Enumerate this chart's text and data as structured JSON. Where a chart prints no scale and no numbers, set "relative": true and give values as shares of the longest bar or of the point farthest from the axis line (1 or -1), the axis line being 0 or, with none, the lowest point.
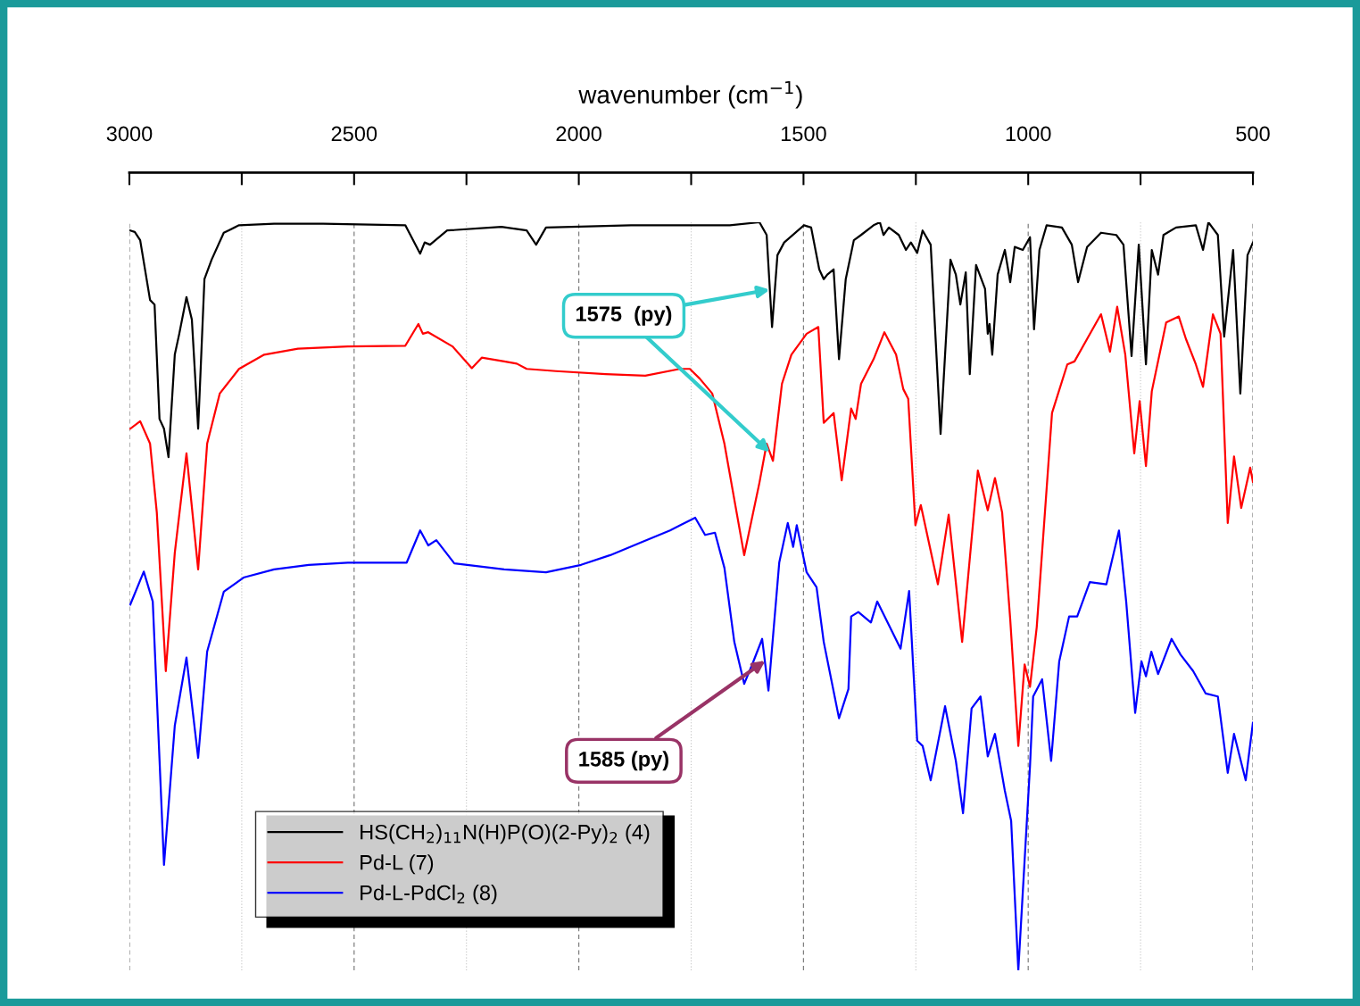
{
  "chart_data": {
    "type": "line",
    "relative": true,
    "xlabel": "wavenumber (cm$^{−1}$)",
    "xlim": [
      3000,
      500
    ],
    "xticks": [
      3000,
      {
        "value": 2750,
        "label": null
      },
      2500,
      {
        "value": 2250,
        "label": null
      },
      2000,
      {
        "value": 1750,
        "label": null
      },
      1500,
      {
        "value": 1250,
        "label": null
      },
      1000,
      {
        "value": 750,
        "label": null
      },
      500
    ],
    "grid": "x",
    "legend": "bottom left",
    "tick_labels": "x",
    "marker": "none",
    "line_style": "solid",
    "annotations": [
      {
        "text": "1575  (py)",
        "x": 1575,
        "y": 0.91
      },
      {
        "text": "1585 (py)",
        "x": 1585,
        "y": 0.414
      }
    ],
    "series": [
      {
        "name": "HS(CH$_{2}$)$_{11}$N(H)P(O)(2-Py)$_{2}$ (4)",
        "color": "#000000",
        "x": [
          2998,
          2988,
          2976,
          2954,
          2944,
          2933,
          2923,
          2913,
          2899,
          2889,
          2873,
          2861,
          2847,
          2833,
          2817,
          2790,
          2756,
          2678,
          2569,
          2386,
          2353,
          2343,
          2331,
          2293,
          2172,
          2116,
          2095,
          2073,
          1884,
          1664,
          1598,
          1582,
          1570,
          1558,
          1543,
          1499,
          1483,
          1465,
          1455,
          1447,
          1433,
          1421,
          1406,
          1388,
          1372,
          1344,
          1330,
          1322,
          1310,
          1288,
          1272,
          1261,
          1247,
          1235,
          1217,
          1195,
          1173,
          1161,
          1151,
          1139,
          1130,
          1116,
          1096,
          1090,
          1086,
          1080,
          1068,
          1052,
          1040,
          1030,
          1012,
          996,
          987,
          975,
          959,
          925,
          903,
          889,
          869,
          838,
          804,
          788,
          770,
          754,
          738,
          725,
          711,
          699,
          671,
          627,
          611,
          599,
          578,
          564,
          544,
          528,
          512,
          500
        ],
        "values": [
          0.989,
          0.987,
          0.976,
          0.896,
          0.89,
          0.737,
          0.724,
          0.686,
          0.823,
          0.851,
          0.9,
          0.87,
          0.724,
          0.924,
          0.95,
          0.986,
          0.996,
          0.998,
          0.998,
          0.996,
          0.958,
          0.973,
          0.97,
          0.989,
          0.994,
          0.989,
          0.97,
          0.993,
          0.996,
          0.996,
          1.0,
          0.983,
          0.86,
          0.956,
          0.973,
          0.996,
          0.993,
          0.937,
          0.924,
          0.93,
          0.937,
          0.817,
          0.924,
          0.976,
          0.983,
          0.996,
          1.0,
          0.983,
          0.993,
          0.983,
          0.963,
          0.973,
          0.959,
          0.989,
          0.97,
          0.717,
          0.95,
          0.93,
          0.89,
          0.933,
          0.797,
          0.943,
          0.911,
          0.851,
          0.864,
          0.823,
          0.93,
          0.963,
          0.92,
          0.967,
          0.963,
          0.98,
          0.857,
          0.963,
          0.996,
          0.993,
          0.97,
          0.92,
          0.967,
          0.986,
          0.983,
          0.97,
          0.821,
          0.97,
          0.81,
          0.963,
          0.93,
          0.983,
          0.993,
          0.996,
          0.963,
          1.0,
          0.983,
          0.847,
          0.963,
          0.771,
          0.956,
          0.973
        ]
      },
      {
        "name": "Pd-L (7)",
        "color": "#ff0000",
        "x": [
          2998,
          2976,
          2954,
          2939,
          2919,
          2899,
          2873,
          2847,
          2827,
          2799,
          2756,
          2700,
          2625,
          2514,
          2386,
          2357,
          2347,
          2335,
          2281,
          2238,
          2216,
          2166,
          2138,
          2116,
          2051,
          1940,
          1852,
          1775,
          1753,
          1731,
          1703,
          1676,
          1632,
          1598,
          1582,
          1568,
          1548,
          1527,
          1493,
          1467,
          1455,
          1433,
          1415,
          1394,
          1384,
          1372,
          1344,
          1320,
          1294,
          1278,
          1267,
          1251,
          1239,
          1201,
          1177,
          1147,
          1112,
          1090,
          1074,
          1058,
          1040,
          1022,
          1008,
          996,
          981,
          947,
          913,
          897,
          869,
          838,
          818,
          802,
          784,
          764,
          752,
          738,
          725,
          693,
          665,
          649,
          627,
          611,
          589,
          572,
          556,
          542,
          526,
          506,
          500
        ],
        "values": [
          0.724,
          0.734,
          0.704,
          0.612,
          0.4,
          0.558,
          0.691,
          0.536,
          0.704,
          0.771,
          0.804,
          0.823,
          0.831,
          0.834,
          0.835,
          0.864,
          0.851,
          0.853,
          0.834,
          0.805,
          0.819,
          0.814,
          0.811,
          0.804,
          0.801,
          0.797,
          0.795,
          0.804,
          0.804,
          0.791,
          0.771,
          0.704,
          0.555,
          0.652,
          0.704,
          0.681,
          0.784,
          0.823,
          0.851,
          0.86,
          0.732,
          0.745,
          0.655,
          0.751,
          0.737,
          0.784,
          0.817,
          0.853,
          0.823,
          0.777,
          0.764,
          0.595,
          0.622,
          0.516,
          0.609,
          0.439,
          0.668,
          0.615,
          0.658,
          0.612,
          0.469,
          0.3,
          0.409,
          0.379,
          0.459,
          0.745,
          0.81,
          0.814,
          0.844,
          0.877,
          0.827,
          0.887,
          0.823,
          0.691,
          0.761,
          0.674,
          0.774,
          0.866,
          0.874,
          0.844,
          0.81,
          0.78,
          0.877,
          0.851,
          0.598,
          0.687,
          0.618,
          0.672,
          0.653
        ]
      },
      {
        "name": "Pd-L-PdCl$_{2}$ (8)",
        "color": "#0000ff",
        "x": [
          2998,
          2968,
          2948,
          2923,
          2899,
          2873,
          2847,
          2827,
          2790,
          2746,
          2678,
          2601,
          2514,
          2383,
          2353,
          2335,
          2317,
          2277,
          2166,
          2073,
          1995,
          1930,
          1862,
          1797,
          1741,
          1719,
          1697,
          1676,
          1654,
          1632,
          1614,
          1592,
          1578,
          1554,
          1535,
          1523,
          1515,
          1493,
          1471,
          1455,
          1421,
          1400,
          1394,
          1378,
          1350,
          1336,
          1322,
          1284,
          1265,
          1247,
          1235,
          1217,
          1185,
          1161,
          1145,
          1126,
          1106,
          1090,
          1074,
          1052,
          1038,
          1022,
          996,
          989,
          969,
          949,
          931,
          909,
          891,
          863,
          826,
          798,
          782,
          762,
          748,
          738,
          726,
          711,
          681,
          661,
          633,
          605,
          578,
          556,
          542,
          516,
          500
        ],
        "values": [
          0.489,
          0.533,
          0.493,
          0.141,
          0.327,
          0.418,
          0.284,
          0.426,
          0.506,
          0.525,
          0.536,
          0.542,
          0.545,
          0.545,
          0.588,
          0.568,
          0.575,
          0.544,
          0.536,
          0.532,
          0.542,
          0.555,
          0.572,
          0.588,
          0.605,
          0.582,
          0.585,
          0.538,
          0.439,
          0.383,
          0.409,
          0.443,
          0.374,
          0.545,
          0.598,
          0.566,
          0.595,
          0.532,
          0.512,
          0.439,
          0.337,
          0.376,
          0.473,
          0.479,
          0.465,
          0.493,
          0.476,
          0.43,
          0.507,
          0.307,
          0.3,
          0.254,
          0.353,
          0.28,
          0.21,
          0.35,
          0.366,
          0.286,
          0.316,
          0.24,
          0.2,
          0.0,
          0.273,
          0.366,
          0.389,
          0.28,
          0.413,
          0.473,
          0.473,
          0.519,
          0.516,
          0.588,
          0.493,
          0.344,
          0.413,
          0.393,
          0.426,
          0.396,
          0.443,
          0.422,
          0.4,
          0.37,
          0.366,
          0.264,
          0.316,
          0.254,
          0.331
        ]
      }
    ]
  }
}
